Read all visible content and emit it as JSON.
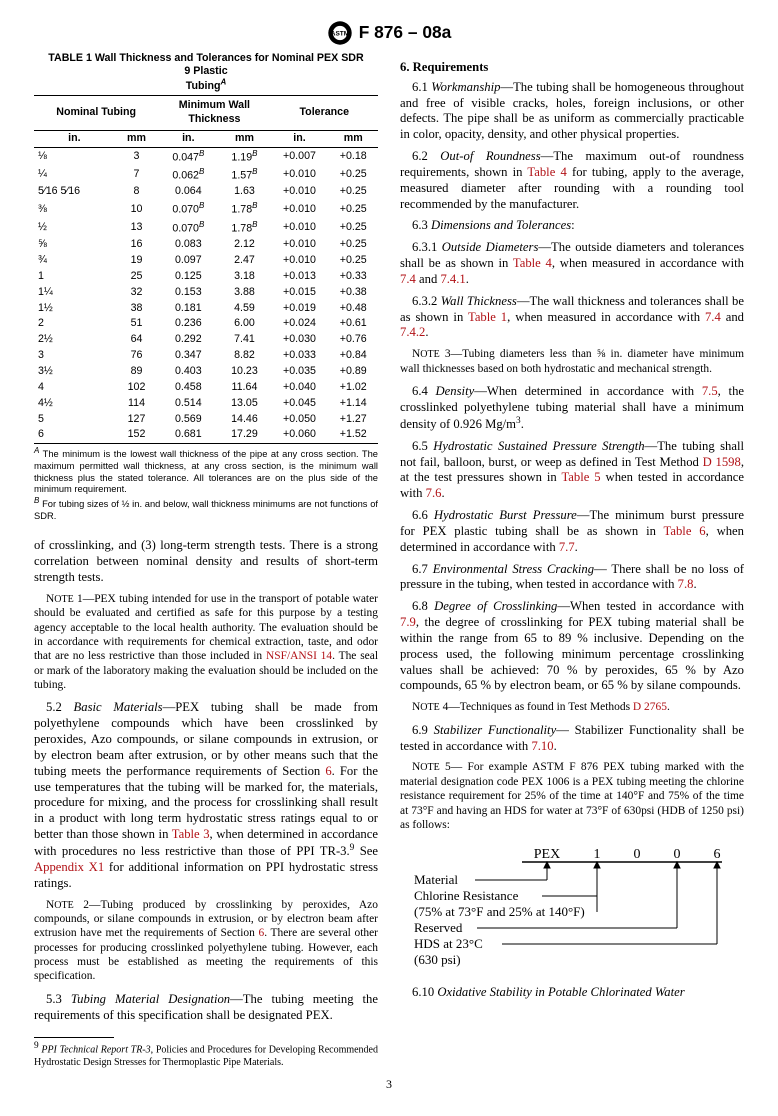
{
  "header": {
    "designation": "F 876 – 08a"
  },
  "table1": {
    "title1": "TABLE 1  Wall Thickness and Tolerances for Nominal PEX SDR",
    "title2": "9 Plastic",
    "title3": "Tubing",
    "header_nom": "Nominal Tubing",
    "header_mwt": "Minimum Wall\nThickness",
    "header_tol": "Tolerance",
    "unit_in": "in.",
    "unit_mm": "mm",
    "rows": [
      {
        "in": "⅛",
        "mm": "3",
        "twin": "0.047",
        "twsup": "B",
        "twmm": "1.19",
        "tsup": "B",
        "tolin": "+0.007",
        "tolmm": "+0.18"
      },
      {
        "in": "¼",
        "mm": "7",
        "twin": "0.062",
        "twsup": "B",
        "twmm": "1.57",
        "tsup": "B",
        "tolin": "+0.010",
        "tolmm": "+0.25"
      },
      {
        "in": "5⁄16 5⁄16",
        "mm": "8",
        "twin": "0.064",
        "twsup": "",
        "twmm": "1.63",
        "tsup": "",
        "tolin": "+0.010",
        "tolmm": "+0.25"
      },
      {
        "in": "⅜",
        "mm": "10",
        "twin": "0.070",
        "twsup": "B",
        "twmm": "1.78",
        "tsup": "B",
        "tolin": "+0.010",
        "tolmm": "+0.25"
      },
      {
        "in": "½",
        "mm": "13",
        "twin": "0.070",
        "twsup": "B",
        "twmm": "1.78",
        "tsup": "B",
        "tolin": "+0.010",
        "tolmm": "+0.25"
      },
      {
        "in": "⅝",
        "mm": "16",
        "twin": "0.083",
        "twsup": "",
        "twmm": "2.12",
        "tsup": "",
        "tolin": "+0.010",
        "tolmm": "+0.25"
      },
      {
        "in": "¾",
        "mm": "19",
        "twin": "0.097",
        "twsup": "",
        "twmm": "2.47",
        "tsup": "",
        "tolin": "+0.010",
        "tolmm": "+0.25"
      },
      {
        "in": "1",
        "mm": "25",
        "twin": "0.125",
        "twsup": "",
        "twmm": "3.18",
        "tsup": "",
        "tolin": "+0.013",
        "tolmm": "+0.33"
      },
      {
        "in": "1¼",
        "mm": "32",
        "twin": "0.153",
        "twsup": "",
        "twmm": "3.88",
        "tsup": "",
        "tolin": "+0.015",
        "tolmm": "+0.38"
      },
      {
        "in": "1½",
        "mm": "38",
        "twin": "0.181",
        "twsup": "",
        "twmm": "4.59",
        "tsup": "",
        "tolin": "+0.019",
        "tolmm": "+0.48"
      },
      {
        "in": "2",
        "mm": "51",
        "twin": "0.236",
        "twsup": "",
        "twmm": "6.00",
        "tsup": "",
        "tolin": "+0.024",
        "tolmm": "+0.61"
      },
      {
        "in": "2½",
        "mm": "64",
        "twin": "0.292",
        "twsup": "",
        "twmm": "7.41",
        "tsup": "",
        "tolin": "+0.030",
        "tolmm": "+0.76"
      },
      {
        "in": "3",
        "mm": "76",
        "twin": "0.347",
        "twsup": "",
        "twmm": "8.82",
        "tsup": "",
        "tolin": "+0.033",
        "tolmm": "+0.84"
      },
      {
        "in": "3½",
        "mm": "89",
        "twin": "0.403",
        "twsup": "",
        "twmm": "10.23",
        "tsup": "",
        "tolin": "+0.035",
        "tolmm": "+0.89"
      },
      {
        "in": "4",
        "mm": "102",
        "twin": "0.458",
        "twsup": "",
        "twmm": "11.64",
        "tsup": "",
        "tolin": "+0.040",
        "tolmm": "+1.02"
      },
      {
        "in": "4½",
        "mm": "114",
        "twin": "0.514",
        "twsup": "",
        "twmm": "13.05",
        "tsup": "",
        "tolin": "+0.045",
        "tolmm": "+1.14"
      },
      {
        "in": "5",
        "mm": "127",
        "twin": "0.569",
        "twsup": "",
        "twmm": "14.46",
        "tsup": "",
        "tolin": "+0.050",
        "tolmm": "+1.27"
      },
      {
        "in": "6",
        "mm": "152",
        "twin": "0.681",
        "twsup": "",
        "twmm": "17.29",
        "tsup": "",
        "tolin": "+0.060",
        "tolmm": "+1.52"
      }
    ],
    "noteA_label": "A",
    "noteA": " The minimum is the lowest wall thickness of the pipe at any cross section. The maximum permitted wall thickness, at any cross section, is the minimum wall thickness plus the stated tolerance. All tolerances are on the plus side of the minimum requirement.",
    "noteB_label": "B",
    "noteB": " For tubing sizes of ½ in. and below, wall thickness minimums are not functions of SDR."
  },
  "left": {
    "p_cont": "of crosslinking, and (3) long-term strength tests. There is a strong correlation between nominal density and results of short-term strength tests.",
    "note1_label": "Note 1",
    "note1_pre": "—PEX tubing intended for use in the transport of potable water should be evaluated and certified as safe for this purpose by a testing agency acceptable to the local health authority. The evaluation should be in accordance with requirements for chemical extraction, taste, and odor that are no less restrictive than those included in ",
    "note1_ref": "NSF/ANSI 14",
    "note1_post": ". The seal or mark of the laboratory making the evaluation should be included on the tubing.",
    "s52_lead": "5.2 ",
    "s52_title": "Basic Materials",
    "s52_a": "—PEX tubing shall be made from polyethylene compounds which have been crosslinked by peroxides, Azo compounds, or silane compounds in extrusion, or by electron beam after extrusion, or by other means such that the tubing meets the performance requirements of Section ",
    "s52_ref1": "6",
    "s52_b": ". For the use temperatures that the tubing will be marked for, the materials, procedure for mixing, and the process for crosslinking shall result in a product with long term hydrostatic stress ratings equal to or better than those shown in ",
    "s52_ref2": "Table 3",
    "s52_c": ", when determined in accordance with procedures no less restrictive than those of PPI TR-3.",
    "s52_fn": "9",
    "s52_d": " See ",
    "s52_ref3": "Appendix X1",
    "s52_e": " for additional information on PPI hydrostatic stress ratings.",
    "note2_label": "Note 2",
    "note2_a": "—Tubing produced by crosslinking by peroxides, Azo compounds, or silane compounds in extrusion, or by electron beam after extrusion have met the requirements of Section ",
    "note2_ref": "6",
    "note2_b": ". There are several other processes for producing crosslinked polyethylene tubing. However, each process must be established as meeting the requirements of this specification.",
    "s53_lead": "5.3 ",
    "s53_title": "Tubing Material Designation",
    "s53_text": "—The tubing meeting the requirements of this specification shall be designated PEX.",
    "fn9_label": "9",
    "fn9_a": " PPI Technical Report TR-3",
    "fn9_b": ", Policies and Procedures for Developing Recommended Hydrostatic Design Stresses for Thermoplastic Pipe Materials."
  },
  "right": {
    "s6": "6. Requirements",
    "s61_lead": "6.1 ",
    "s61_title": "Workmanship",
    "s61_text": "—The tubing shall be homogeneous throughout and free of visible cracks, holes, foreign inclusions, or other defects. The pipe shall be as uniform as commercially practicable in color, opacity, density, and other physical properties.",
    "s62_lead": "6.2 ",
    "s62_title": "Out-of Roundness",
    "s62_a": "—The maximum out-of roundness requirements, shown in ",
    "s62_ref": "Table 4",
    "s62_b": " for tubing, apply to the average, measured diameter after rounding with a rounding tool recommended by the manufacturer.",
    "s63_lead": "6.3 ",
    "s63_title": "Dimensions and Tolerances",
    "s63_colon": ":",
    "s631_lead": "6.3.1 ",
    "s631_title": "Outside Diameters",
    "s631_a": "—The outside diameters and tolerances shall be as shown in ",
    "s631_ref1": "Table 4",
    "s631_b": ", when measured in accordance with ",
    "s631_ref2": "7.4",
    "s631_and1": " and ",
    "s631_ref3": "7.4.1",
    "s631_dot": ".",
    "s632_lead": "6.3.2 ",
    "s632_title": "Wall Thickness",
    "s632_a": "—The wall thickness and tolerances shall be as shown in ",
    "s632_ref1": "Table 1",
    "s632_b": ", when measured in accordance with ",
    "s632_ref2": "7.4",
    "s632_and": " and ",
    "s632_ref3": "7.4.2",
    "s632_dot": ".",
    "note3_label": "Note 3",
    "note3_text": "—Tubing diameters less than ⅝ in. diameter have minimum wall thicknesses based on both hydrostatic and mechanical strength.",
    "s64_lead": "6.4 ",
    "s64_title": "Density",
    "s64_a": "—When determined in accordance with ",
    "s64_ref": "7.5",
    "s64_b": ", the crosslinked polyethylene tubing material shall have a minimum density of 0.926 Mg/m",
    "s64_sup": "3",
    "s64_dot": ".",
    "s65_lead": "6.5 ",
    "s65_title": "Hydrostatic Sustained Pressure Strength",
    "s65_a": "—The tubing shall not fail, balloon, burst, or weep as defined in Test Method ",
    "s65_ref1": "D 1598",
    "s65_b": ", at the test pressures shown in ",
    "s65_ref2": "Table 5",
    "s65_c": " when tested in accordance with ",
    "s65_ref3": "7.6",
    "s65_dot": ".",
    "s66_lead": "6.6 ",
    "s66_title": "Hydrostatic Burst Pressure",
    "s66_a": "—The minimum burst pressure for PEX plastic tubing shall be as shown in ",
    "s66_ref1": "Table 6",
    "s66_b": ", when determined in accordance with ",
    "s66_ref2": "7.7",
    "s66_dot": ".",
    "s67_lead": "6.7 ",
    "s67_title": "Environmental Stress Cracking",
    "s67_a": "— There shall be no loss of pressure in the tubing, when tested in accordance with ",
    "s67_ref": "7.8",
    "s67_dot": ".",
    "s68_lead": "6.8 ",
    "s68_title": "Degree of Crosslinking",
    "s68_a": "—When tested in accordance with ",
    "s68_ref": "7.9",
    "s68_b": ", the degree of crosslinking for PEX tubing material shall be within the range from 65 to 89 % inclusive. Depending on the process used, the following minimum percentage crosslinking values shall be achieved: 70 % by peroxides, 65 % by Azo compounds, 65 % by electron beam, or 65 % by silane compounds.",
    "note4_label": "Note 4",
    "note4_a": "—Techniques as found in Test Methods ",
    "note4_ref": "D 2765",
    "note4_dot": ".",
    "s69_lead": "6.9 ",
    "s69_title": "Stabilizer Functionality",
    "s69_a": "— Stabilizer Functionality shall be tested in accordance with ",
    "s69_ref": "7.10",
    "s69_dot": ".",
    "note5_label": "Note 5",
    "note5_text": "— For example ASTM F 876 PEX tubing marked with the material designation code PEX 1006 is a PEX tubing meeting the chlorine resistance requirement for 25% of the time at 140°F and 75% of the time at 73°F and having an HDS for water at 73°F of 630psi (HDB of 1250 psi) as follows:",
    "diagram": {
      "head": [
        "PEX",
        "1",
        "0",
        "0",
        "6"
      ],
      "lines": [
        "Material ——————",
        "Chlorine Resistance ————",
        "(75% at 73°F and  25% at 140°F)",
        "Reserved ——————————",
        "HDS at 23°C ————————————",
        "(630 psi)"
      ]
    },
    "s610": "6.10 Oxidative Stability in Potable Chlorinated Water",
    "s610_lead": "6.10 ",
    "s610_title": "Oxidative Stability in Potable Chlorinated Water"
  },
  "pagenum": "3"
}
